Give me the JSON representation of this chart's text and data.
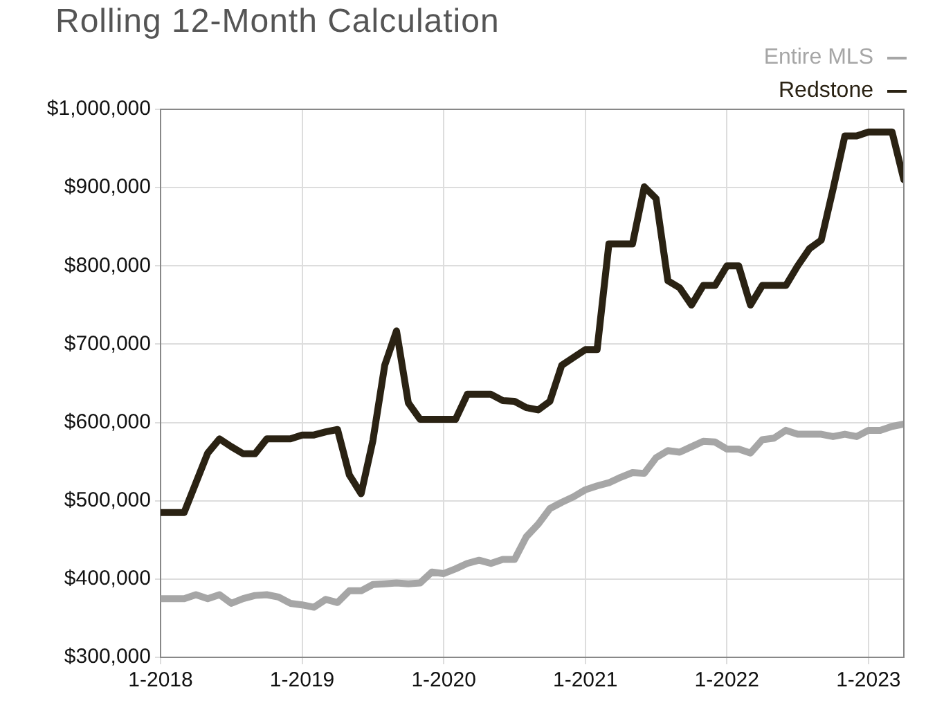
{
  "chart_data": {
    "type": "line",
    "title": "Rolling 12-Month Calculation",
    "x": [
      "2018-01",
      "2018-02",
      "2018-03",
      "2018-04",
      "2018-05",
      "2018-06",
      "2018-07",
      "2018-08",
      "2018-09",
      "2018-10",
      "2018-11",
      "2018-12",
      "2019-01",
      "2019-02",
      "2019-03",
      "2019-04",
      "2019-05",
      "2019-06",
      "2019-07",
      "2019-08",
      "2019-09",
      "2019-10",
      "2019-11",
      "2019-12",
      "2020-01",
      "2020-02",
      "2020-03",
      "2020-04",
      "2020-05",
      "2020-06",
      "2020-07",
      "2020-08",
      "2020-09",
      "2020-10",
      "2020-11",
      "2020-12",
      "2021-01",
      "2021-02",
      "2021-03",
      "2021-04",
      "2021-05",
      "2021-06",
      "2021-07",
      "2021-08",
      "2021-09",
      "2021-10",
      "2021-11",
      "2021-12",
      "2022-01",
      "2022-02",
      "2022-03",
      "2022-04",
      "2022-05",
      "2022-06",
      "2022-07",
      "2022-08",
      "2022-09",
      "2022-10",
      "2022-11",
      "2022-12",
      "2023-01",
      "2023-02",
      "2023-03",
      "2023-04"
    ],
    "series": [
      {
        "name": "Entire MLS",
        "color": "#a6a6a6",
        "values": [
          375000,
          375000,
          375000,
          380000,
          375000,
          380000,
          369000,
          375000,
          379000,
          380000,
          377000,
          369000,
          367000,
          364000,
          374000,
          370000,
          385000,
          385000,
          393000,
          394000,
          395000,
          394000,
          395000,
          409000,
          407000,
          413000,
          420000,
          424000,
          420000,
          425000,
          425000,
          454000,
          470000,
          490000,
          498000,
          505000,
          514000,
          519000,
          523000,
          530000,
          536000,
          535000,
          555000,
          564000,
          562000,
          569000,
          576000,
          575000,
          566000,
          566000,
          561000,
          578000,
          580000,
          590000,
          585000,
          585000,
          585000,
          582000,
          585000,
          582000,
          590000,
          590000,
          595000,
          598000
        ]
      },
      {
        "name": "Redstone",
        "color": "#2a2213",
        "values": [
          485000,
          485000,
          485000,
          523000,
          561000,
          579000,
          569000,
          560000,
          560000,
          579000,
          579000,
          579000,
          584000,
          584000,
          588000,
          591000,
          533000,
          509000,
          577000,
          673000,
          717000,
          625000,
          604000,
          604000,
          604000,
          604000,
          636000,
          636000,
          636000,
          628000,
          627000,
          619000,
          616000,
          627000,
          673000,
          683000,
          693000,
          693000,
          828000,
          828000,
          828000,
          901000,
          886000,
          781000,
          772000,
          750000,
          775000,
          775000,
          800000,
          800000,
          750000,
          775000,
          775000,
          775000,
          800000,
          822000,
          833000,
          898000,
          966000,
          966000,
          971000,
          971000,
          971000,
          910000
        ]
      }
    ],
    "xlim": [
      "2018-01",
      "2023-04"
    ],
    "xticks": [
      {
        "value": "2018-01",
        "label": "1-2018"
      },
      {
        "value": "2019-01",
        "label": "1-2019"
      },
      {
        "value": "2020-01",
        "label": "1-2020"
      },
      {
        "value": "2021-01",
        "label": "1-2021"
      },
      {
        "value": "2022-01",
        "label": "1-2022"
      },
      {
        "value": "2023-01",
        "label": "1-2023"
      }
    ],
    "ylim": [
      300000,
      1000000
    ],
    "yticks": [
      {
        "value": 300000,
        "label": "$300,000"
      },
      {
        "value": 400000,
        "label": "$400,000"
      },
      {
        "value": 500000,
        "label": "$500,000"
      },
      {
        "value": 600000,
        "label": "$600,000"
      },
      {
        "value": 700000,
        "label": "$700,000"
      },
      {
        "value": 800000,
        "label": "$800,000"
      },
      {
        "value": 900000,
        "label": "$900,000"
      },
      {
        "value": 1000000,
        "label": "$1,000,000"
      }
    ],
    "grid": true,
    "legend": "top right",
    "marker": "none",
    "line_style": "solid"
  }
}
